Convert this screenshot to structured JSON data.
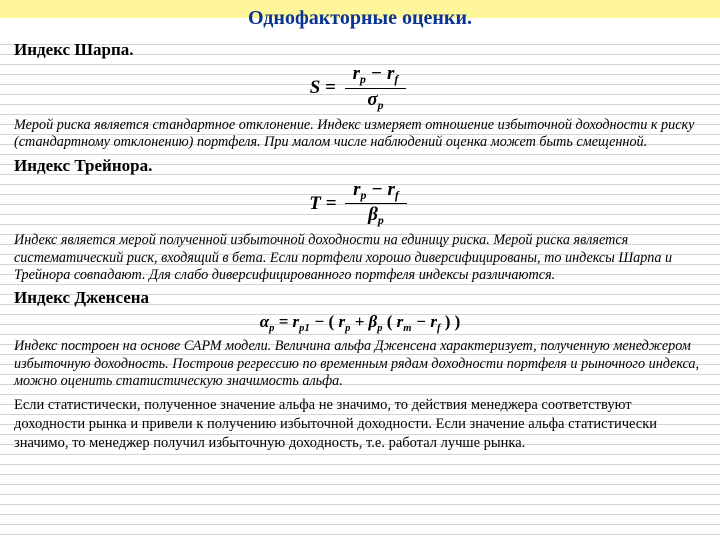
{
  "palette": {
    "title_color": "#0b3390",
    "title_bg_top": "#fff59a",
    "rule_color": "#d4d4d4",
    "text_color": "#000000"
  },
  "title": "Однофакторные оценки.",
  "sharpe": {
    "heading": "Индекс Шарпа.",
    "formula_left": "S",
    "formula_num_a": "r",
    "formula_num_a_sub": "p",
    "formula_num_minus": "−",
    "formula_num_b": "r",
    "formula_num_b_sub": "f",
    "formula_den": "σ",
    "formula_den_sub": "p",
    "text": "Мерой риска является стандартное отклонение. Индекс измеряет отношение избыточной доходности к риску (стандартному отклонению) портфеля. При малом числе наблюдений оценка может быть смещенной."
  },
  "treynor": {
    "heading": "Индекс Трейнора.",
    "formula_left": "T",
    "formula_num_a": "r",
    "formula_num_a_sub": "p",
    "formula_num_minus": "−",
    "formula_num_b": "r",
    "formula_num_b_sub": "f",
    "formula_den": "β",
    "formula_den_sub": "p",
    "text": "Индекс является мерой полученной избыточной доходности на единицу риска. Мерой риска является систематический риск, входящий в бета. Если портфели хорошо диверсифицированы, то индексы Шарпа и Трейнора совпадают. Для слабо диверсифицированного портфеля индексы различаются."
  },
  "jensen": {
    "heading": "Индекс Дженсена",
    "alpha": "α",
    "alpha_sub": "p",
    "eq": "=",
    "r1": "r",
    "r1_sub": "p1",
    "minus1": "−",
    "lp": "(",
    "r2": "r",
    "r2_sub": "p",
    "plus": "+",
    "beta": "β",
    "beta_sub": "p",
    "lp2": "(",
    "rm": "r",
    "rm_sub": "m",
    "minus2": "−",
    "rf": "r",
    "rf_sub": "f",
    "rp2": ")",
    "rp": ")",
    "text": "Индекс построен на основе САРМ модели. Величина альфа Дженсена характеризует, полученную менеджером избыточную доходность. Построив регрессию по временным рядам доходности портфеля и рыночного индекса, можно оценить статистическую значимость альфа.",
    "text2": "Если статистически, полученное значение альфа не значимо, то действия менеджера соответствуют доходности рынка и привели к получению избыточной доходности. Если значение альфа статистически значимо, то менеджер получил избыточную доходность, т.е. работал лучше рынка."
  }
}
